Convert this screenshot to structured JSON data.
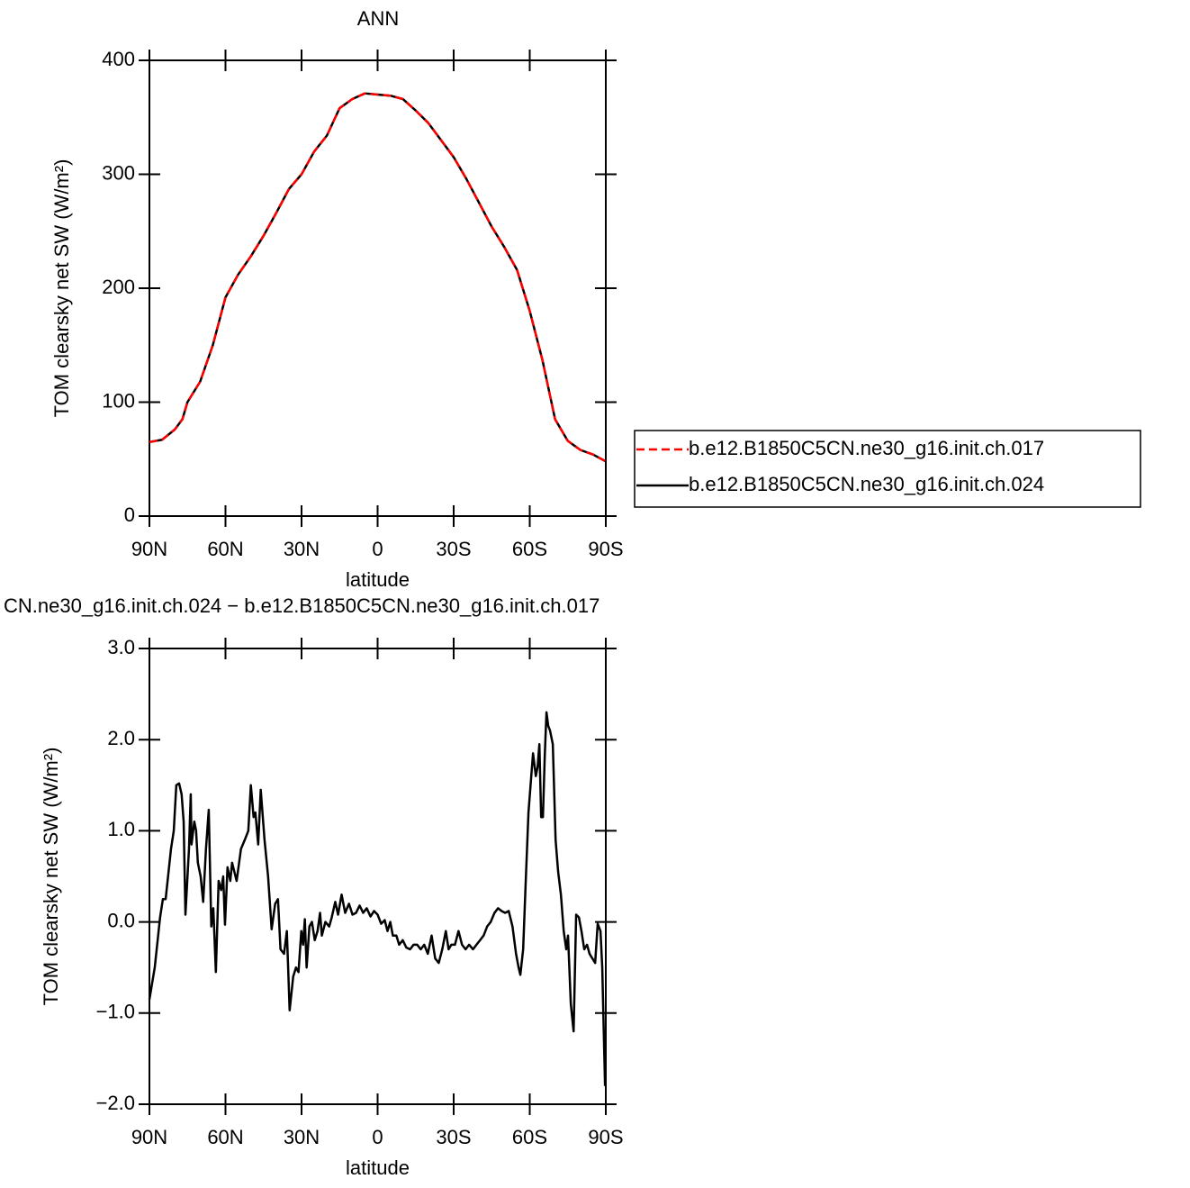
{
  "chart_data": [
    {
      "type": "line",
      "title": "ANN",
      "xlabel": "latitude",
      "ylabel": "TOM clearsky net SW (W/m²)",
      "x": [
        90,
        85,
        80,
        77,
        75,
        70,
        65,
        60,
        55,
        50,
        45,
        40,
        35,
        30,
        25,
        20,
        15,
        10,
        5,
        0,
        -5,
        -10,
        -15,
        -20,
        -25,
        -30,
        -35,
        -40,
        -45,
        -50,
        -55,
        -60,
        -65,
        -70,
        -75,
        -80,
        -85,
        -90
      ],
      "series": [
        {
          "name": "b.e12.B1850C5CN.ne30_g16.init.ch.017",
          "color": "#ff0000",
          "style": "dashed",
          "values": [
            65,
            67,
            76,
            85,
            100,
            118,
            150,
            192,
            212,
            228,
            246,
            266,
            287,
            300,
            320,
            334,
            358,
            366,
            371,
            370,
            369,
            366,
            356,
            345,
            330,
            315,
            296,
            275,
            254,
            236,
            216,
            180,
            137,
            85,
            66,
            58,
            54,
            48
          ]
        },
        {
          "name": "b.e12.B1850C5CN.ne30_g16.init.ch.024",
          "color": "#000000",
          "style": "solid",
          "values": [
            65,
            67,
            76,
            85,
            100,
            118,
            150,
            192,
            212,
            228,
            246,
            266,
            287,
            300,
            320,
            334,
            358,
            366,
            371,
            370,
            369,
            366,
            356,
            345,
            330,
            315,
            296,
            275,
            254,
            236,
            216,
            180,
            137,
            85,
            66,
            58,
            54,
            48
          ]
        }
      ],
      "xlim": [
        90,
        -90
      ],
      "xticks": [
        {
          "value": 90,
          "label": "90N"
        },
        {
          "value": 60,
          "label": "60N"
        },
        {
          "value": 30,
          "label": "30N"
        },
        0,
        {
          "value": -30,
          "label": "30S"
        },
        {
          "value": -60,
          "label": "60S"
        },
        {
          "value": -90,
          "label": "90S"
        }
      ],
      "ylim": [
        0,
        400
      ],
      "yticks": [
        0,
        100,
        200,
        300,
        400
      ],
      "legend": "right"
    },
    {
      "type": "line",
      "title": "CN.ne30_g16.init.ch.024 − b.e12.B1850C5CN.ne30_g16.init.ch.017",
      "xlabel": "latitude",
      "ylabel": "TOM clearsky net SW (W/m²)",
      "x": [
        90.0,
        87.9,
        85.8,
        84.7,
        83.6,
        81.5,
        80.4,
        79.4,
        78.3,
        77.3,
        76.5,
        75.8,
        74.4,
        73.7,
        73.4,
        72.3,
        71.6,
        70.9,
        69.8,
        68.8,
        67.7,
        66.6,
        65.6,
        64.8,
        63.8,
        62.7,
        61.7,
        60.9,
        60.2,
        59.2,
        58.1,
        57.4,
        55.6,
        53.9,
        52.4,
        51.0,
        50.0,
        48.9,
        48.2,
        47.1,
        46.1,
        44.6,
        43.2,
        41.8,
        40.4,
        39.3,
        38.3,
        36.9,
        35.8,
        34.7,
        33.3,
        32.2,
        31.2,
        30.1,
        29.4,
        28.7,
        28.0,
        26.9,
        25.9,
        24.8,
        23.7,
        22.7,
        22.0,
        20.6,
        19.1,
        18.1,
        16.7,
        15.6,
        14.2,
        12.8,
        11.3,
        9.9,
        8.5,
        7.1,
        5.7,
        4.3,
        2.8,
        1.4,
        0,
        -1.4,
        -2.8,
        -3.9,
        -5.0,
        -6.0,
        -7.4,
        -8.5,
        -9.9,
        -11.3,
        -12.8,
        -14.2,
        -15.6,
        -17.0,
        -18.4,
        -19.8,
        -21.3,
        -22.7,
        -24.1,
        -25.5,
        -26.9,
        -28.0,
        -29.1,
        -30.5,
        -31.9,
        -33.3,
        -34.7,
        -36.1,
        -37.6,
        -39.0,
        -40.4,
        -41.8,
        -43.2,
        -44.6,
        -46.1,
        -47.5,
        -48.9,
        -50.3,
        -51.7,
        -53.2,
        -54.6,
        -55.6,
        -56.3,
        -57.4,
        -58.5,
        -59.5,
        -60.6,
        -61.3,
        -62.4,
        -63.1,
        -63.8,
        -64.5,
        -65.2,
        -65.9,
        -66.6,
        -67.3,
        -68.0,
        -69.1,
        -70.2,
        -71.2,
        -72.3,
        -73.4,
        -74.4,
        -75.1,
        -76.2,
        -77.3,
        -78.3,
        -79.4,
        -80.4,
        -81.5,
        -82.6,
        -83.6,
        -84.7,
        -85.8,
        -86.8,
        -87.9,
        -88.6,
        -89.7
      ],
      "values": [
        -0.85,
        -0.5,
        0.05,
        0.25,
        0.25,
        0.8,
        1.0,
        1.5,
        1.52,
        1.4,
        1.1,
        0.08,
        0.8,
        1.4,
        0.85,
        1.1,
        1.0,
        0.65,
        0.5,
        0.22,
        0.8,
        1.23,
        -0.05,
        0.15,
        -0.55,
        0.45,
        0.35,
        0.5,
        -0.03,
        0.6,
        0.45,
        0.65,
        0.45,
        0.8,
        0.9,
        1.0,
        1.5,
        1.15,
        1.2,
        0.85,
        1.45,
        0.9,
        0.5,
        -0.08,
        0.2,
        0.25,
        -0.3,
        -0.35,
        -0.1,
        -0.97,
        -0.6,
        -0.5,
        -0.55,
        -0.1,
        -0.25,
        0.03,
        -0.5,
        -0.05,
        0.0,
        -0.2,
        -0.1,
        0.1,
        -0.15,
        0.0,
        -0.05,
        0.05,
        0.22,
        0.08,
        0.3,
        0.1,
        0.2,
        0.08,
        0.1,
        0.18,
        0.1,
        0.15,
        0.06,
        0.12,
        0.08,
        -0.02,
        0.02,
        -0.1,
        0.0,
        -0.15,
        -0.15,
        -0.25,
        -0.2,
        -0.28,
        -0.3,
        -0.25,
        -0.25,
        -0.3,
        -0.25,
        -0.35,
        -0.15,
        -0.4,
        -0.45,
        -0.3,
        -0.1,
        -0.3,
        -0.25,
        -0.25,
        -0.1,
        -0.25,
        -0.3,
        -0.25,
        -0.3,
        -0.25,
        -0.2,
        -0.15,
        -0.05,
        0.0,
        0.1,
        0.15,
        0.12,
        0.1,
        0.12,
        -0.05,
        -0.35,
        -0.5,
        -0.58,
        -0.3,
        0.5,
        1.2,
        1.6,
        1.85,
        1.6,
        1.7,
        1.95,
        1.15,
        1.15,
        1.8,
        2.3,
        2.15,
        2.1,
        1.95,
        0.9,
        0.55,
        0.3,
        -0.1,
        -0.3,
        -0.15,
        -0.9,
        -1.2,
        0.08,
        0.05,
        -0.1,
        -0.3,
        -0.25,
        -0.35,
        -0.4,
        -0.45,
        -0.02,
        -0.1,
        -0.5,
        -1.8
      ],
      "color": "#000000",
      "xlim": [
        90,
        -90
      ],
      "xticks": [
        {
          "value": 90,
          "label": "90N"
        },
        {
          "value": 60,
          "label": "60N"
        },
        {
          "value": 30,
          "label": "30N"
        },
        0,
        {
          "value": -30,
          "label": "30S"
        },
        {
          "value": -60,
          "label": "60S"
        },
        {
          "value": -90,
          "label": "90S"
        }
      ],
      "ylim": [
        -2,
        3
      ],
      "yticks": [
        {
          "value": -2,
          "label": "−2.0"
        },
        {
          "value": -1,
          "label": "−1.0"
        },
        {
          "value": 0,
          "label": "0.0"
        },
        {
          "value": 1,
          "label": "1.0"
        },
        {
          "value": 2,
          "label": "2.0"
        },
        {
          "value": 3,
          "label": "3.0"
        }
      ]
    }
  ]
}
